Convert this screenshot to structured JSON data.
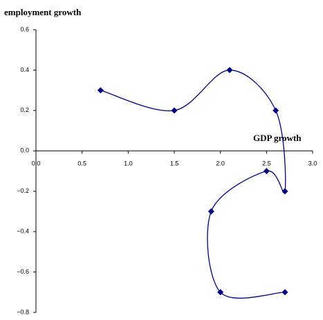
{
  "chart_data": {
    "type": "scatter",
    "y_axis_label": "employment growth",
    "x_axis_label": "GDP growth",
    "x": [
      0.7,
      1.5,
      2.1,
      2.6,
      2.7,
      2.5,
      1.9,
      2.0,
      2.7
    ],
    "values": [
      0.3,
      0.2,
      0.4,
      0.2,
      -0.2,
      -0.1,
      -0.3,
      -0.7,
      -0.7
    ],
    "color": "#000080",
    "smooth": true,
    "xlim": [
      0,
      3.0
    ],
    "xticks": [
      {
        "value": 0,
        "label": "0.0"
      },
      0.5,
      {
        "value": 1,
        "label": "1.0"
      },
      1.5,
      {
        "value": 2,
        "label": "2.0"
      },
      2.5,
      {
        "value": 3,
        "label": "3.0"
      }
    ],
    "ylim": [
      -0.8,
      0.6
    ],
    "yticks": [
      0.6,
      0.4,
      0.2,
      {
        "value": 0,
        "label": "0.0"
      },
      {
        "value": -0.2,
        "label": "−0.2"
      },
      {
        "value": -0.4,
        "label": "−0.4"
      },
      {
        "value": -0.6,
        "label": "−0.6"
      },
      {
        "value": -0.8,
        "label": "−0.8"
      }
    ]
  }
}
